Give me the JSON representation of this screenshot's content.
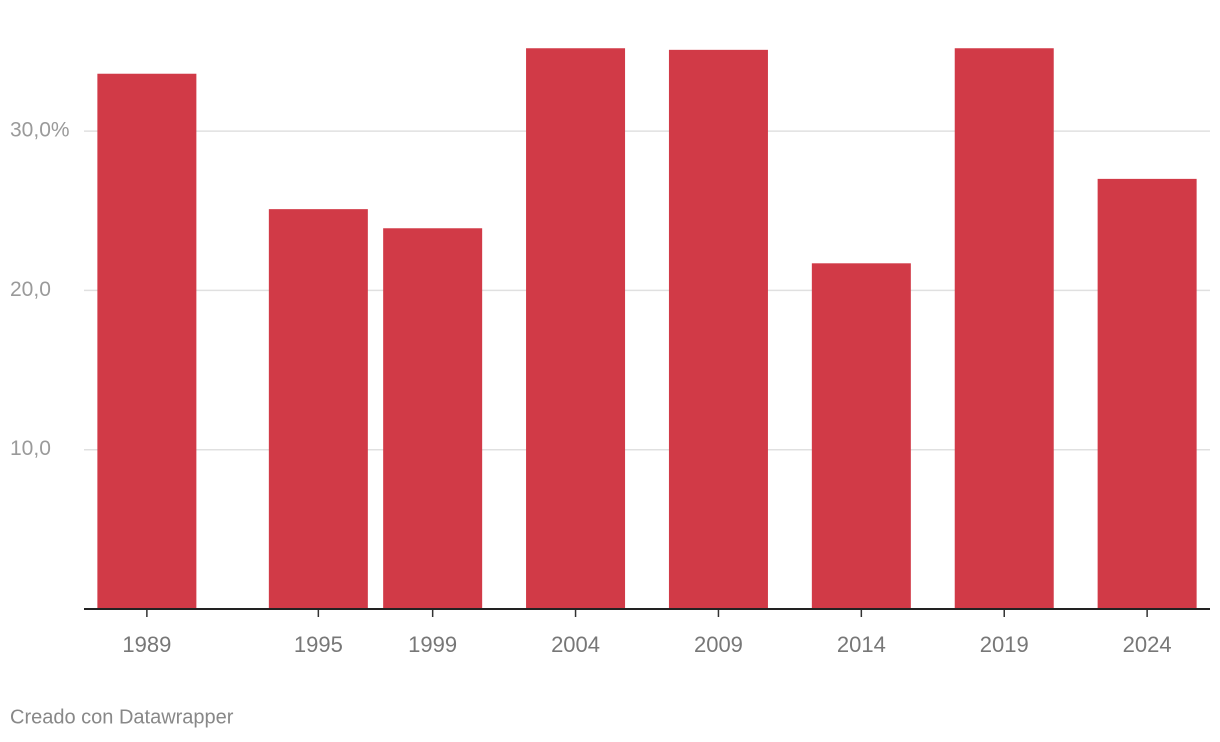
{
  "chart_data": {
    "type": "bar",
    "x": [
      1989,
      1995,
      1999,
      2004,
      2009,
      2014,
      2019,
      2024
    ],
    "values": [
      33.6,
      25.1,
      23.9,
      35.2,
      35.1,
      21.7,
      35.2,
      27.0
    ],
    "color": "#d13a47",
    "xlim": [
      1986.8,
      2026.2
    ],
    "ylim": [
      0,
      36
    ],
    "yticks": [
      {
        "value": 10,
        "label": "10,0"
      },
      {
        "value": 20,
        "label": "20,0"
      },
      {
        "value": 30,
        "label": "30,0%"
      }
    ],
    "grid": true,
    "footer": "Creado con Datawrapper"
  }
}
